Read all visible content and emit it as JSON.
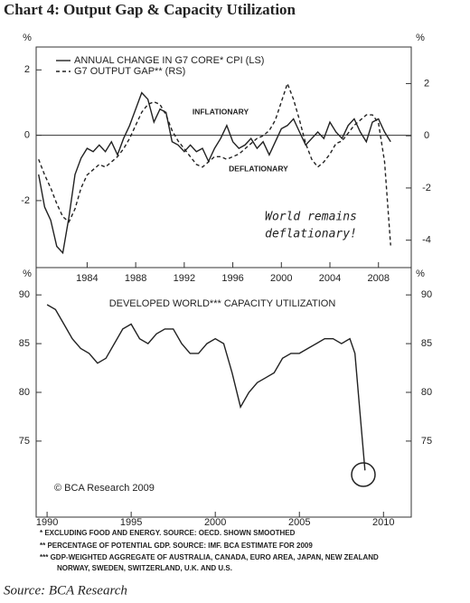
{
  "title": "Chart 4:  Output Gap & Capacity Utilization",
  "chart_data": [
    {
      "type": "line",
      "left_unit": "%",
      "right_unit": "%",
      "x": [
        1980,
        1980.5,
        1981,
        1981.5,
        1982,
        1982.5,
        1983,
        1983.5,
        1984,
        1984.5,
        1985,
        1985.5,
        1986,
        1986.5,
        1987,
        1987.5,
        1988,
        1988.5,
        1989,
        1989.5,
        1990,
        1990.5,
        1991,
        1991.5,
        1992,
        1992.5,
        1993,
        1993.5,
        1994,
        1994.5,
        1995,
        1995.5,
        1996,
        1996.5,
        1997,
        1997.5,
        1998,
        1998.5,
        1999,
        1999.5,
        2000,
        2000.5,
        2001,
        2001.5,
        2002,
        2002.5,
        2003,
        2003.5,
        2004,
        2004.5,
        2005,
        2005.5,
        2006,
        2006.5,
        2007,
        2007.5,
        2008,
        2008.5,
        2009
      ],
      "xlim": [
        1979.8,
        2010.7
      ],
      "xticks": [
        1984,
        1988,
        1992,
        1996,
        2000,
        2004,
        2008
      ],
      "ylim": [
        -4.05,
        2.7
      ],
      "yticks": [
        -2,
        0,
        2
      ],
      "y2lim": [
        -5.05,
        3.4
      ],
      "y2ticks": [
        -4,
        -2,
        0,
        2
      ],
      "zero_line": true,
      "series": [
        {
          "name": "ANNUAL CHANGE IN G7 CORE* CPI (LS)",
          "color": "#222222",
          "line_style": "solid",
          "values": [
            -1.2,
            -2.2,
            -2.6,
            -3.4,
            -3.6,
            -2.5,
            -1.2,
            -0.7,
            -0.4,
            -0.5,
            -0.3,
            -0.5,
            -0.2,
            -0.6,
            -0.1,
            0.3,
            0.8,
            1.3,
            1.1,
            0.4,
            0.8,
            0.7,
            -0.2,
            -0.3,
            -0.5,
            -0.3,
            -0.5,
            -0.4,
            -0.8,
            -0.4,
            -0.1,
            0.3,
            -0.2,
            -0.4,
            -0.3,
            -0.1,
            -0.4,
            -0.2,
            -0.6,
            -0.2,
            0.2,
            0.3,
            0.5,
            0.1,
            -0.3,
            -0.1,
            0.1,
            -0.1,
            0.4,
            0.1,
            -0.1,
            0.3,
            0.5,
            0.1,
            -0.2,
            0.4,
            0.5,
            0.1,
            -0.2
          ]
        },
        {
          "name": "G7 OUTPUT GAP** (RS)",
          "color": "#222222",
          "line_style": "dashed",
          "axis": "y2",
          "values": [
            -0.9,
            -1.5,
            -2.0,
            -2.6,
            -3.1,
            -3.3,
            -2.8,
            -2.0,
            -1.5,
            -1.3,
            -1.1,
            -1.2,
            -1.0,
            -0.8,
            -0.5,
            -0.1,
            0.4,
            0.9,
            1.2,
            1.3,
            1.2,
            0.8,
            0.2,
            -0.2,
            -0.5,
            -0.8,
            -1.1,
            -1.2,
            -1.0,
            -0.8,
            -0.8,
            -0.9,
            -0.8,
            -0.7,
            -0.5,
            -0.3,
            -0.1,
            0.0,
            0.2,
            0.6,
            1.3,
            2.0,
            1.4,
            0.6,
            -0.3,
            -0.9,
            -1.2,
            -1.0,
            -0.7,
            -0.3,
            -0.2,
            0.1,
            0.4,
            0.6,
            0.8,
            0.8,
            0.5,
            -1.0,
            -4.2
          ]
        }
      ],
      "annotations": [
        "INFLATIONARY",
        "DEFLATIONARY",
        "World remains",
        "deflationary!"
      ]
    },
    {
      "type": "line",
      "left_unit": "%",
      "right_unit": "%",
      "subtitle": "DEVELOPED WORLD*** CAPACITY UTILIZATION",
      "x": [
        1990,
        1990.5,
        1991,
        1991.5,
        1992,
        1992.5,
        1993,
        1993.5,
        1994,
        1994.5,
        1995,
        1995.5,
        1996,
        1996.5,
        1997,
        1997.5,
        1998,
        1998.5,
        1999,
        1999.5,
        2000,
        2000.5,
        2001,
        2001.5,
        2002,
        2002.5,
        2003,
        2003.5,
        2004,
        2004.5,
        2005,
        2005.5,
        2006,
        2006.5,
        2007,
        2007.5,
        2008,
        2008.3,
        2008.6,
        2008.9
      ],
      "xlim": [
        1989.35,
        2011.65
      ],
      "xticks": [
        1990,
        1995,
        2000,
        2005,
        2010
      ],
      "ylim": [
        67.2,
        92.8
      ],
      "yticks": [
        75,
        80,
        85,
        90
      ],
      "y2lim": [
        67.2,
        92.8
      ],
      "y2ticks": [
        75,
        80,
        85,
        90
      ],
      "series": [
        {
          "color": "#222222",
          "line_style": "solid",
          "values": [
            89,
            88.5,
            87,
            85.5,
            84.5,
            84,
            83,
            83.5,
            85,
            86.5,
            87,
            85.5,
            85,
            86,
            86.5,
            86.5,
            85,
            84,
            84,
            85,
            85.5,
            85,
            82,
            78.5,
            80,
            81,
            81.5,
            82,
            83.5,
            84,
            84,
            84.5,
            85,
            85.5,
            85.5,
            85,
            85.5,
            84,
            78,
            72
          ]
        }
      ],
      "copyright": "© BCA Research 2009"
    }
  ],
  "footnotes": [
    "*   EXCLUDING FOOD AND ENERGY. SOURCE: OECD. SHOWN SMOOTHED",
    "**  PERCENTAGE OF POTENTIAL GDP. SOURCE: IMF. BCA ESTIMATE FOR 2009",
    "*** GDP-WEIGHTED AGGREGATE OF AUSTRALIA, CANADA, EURO AREA, JAPAN, NEW ZEALAND",
    "NORWAY, SWEDEN, SWITZERLAND, U.K. AND U.S."
  ],
  "source": "Source: BCA Research"
}
